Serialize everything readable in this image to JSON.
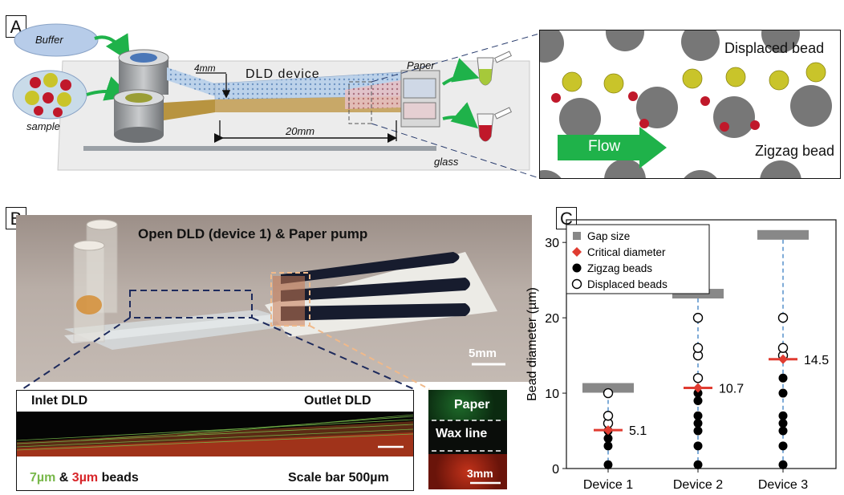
{
  "panels": {
    "a": {
      "letter": "A",
      "buffer": "Buffer",
      "sample": "sample",
      "device": "DLD device",
      "dim_width": "4mm",
      "dim_length": "20mm",
      "paper": "Paper",
      "glass": "glass",
      "zoom_displaced": "Displaced bead",
      "zoom_zigzag": "Zigzag bead",
      "zoom_flow": "Flow"
    },
    "b": {
      "letter": "B",
      "photo_title": "Open DLD (device 1) & Paper pump",
      "scale_photo": "5mm",
      "inlet": "Inlet DLD",
      "outlet": "Outlet DLD",
      "beads_7": "7µm",
      "beads_amp": " & ",
      "beads_3": "3µm",
      "beads_suffix": " beads",
      "scale_bar": "Scale bar 500µm",
      "paper": "Paper",
      "wax": "Wax line",
      "scale_inset": "3mm"
    },
    "c": {
      "letter": "C"
    }
  },
  "colors": {
    "gap": "#888888",
    "critical": "#e03c31",
    "zigzag": "#000000",
    "displaced": "#ffffff",
    "axis_dashed": "#3b7fc4",
    "bead_yellow": "#c9c42a",
    "bead_red": "#c0182a",
    "flow_green": "#1fb24a"
  },
  "chart_data": {
    "type": "scatter",
    "ylabel": "Bead diameter (µm)",
    "categories": [
      "Device 1",
      "Device 2",
      "Device 3"
    ],
    "ylim": [
      0,
      33
    ],
    "yticks": [
      0,
      10,
      20,
      30
    ],
    "legend": [
      "Gap size",
      "Critical diameter",
      "Zigzag beads",
      "Displaced beads"
    ],
    "legend_position": "top-left",
    "gap_size": [
      10.7,
      23.2,
      31.0
    ],
    "critical_diameter": [
      5.1,
      10.7,
      14.5
    ],
    "critical_labels": [
      "5.1",
      "10.7",
      "14.5"
    ],
    "zigzag": [
      [
        0.5,
        3,
        4,
        5
      ],
      [
        0.5,
        3,
        5,
        6,
        7,
        9,
        10
      ],
      [
        0.5,
        3,
        5,
        6,
        7,
        10,
        12
      ]
    ],
    "displaced": [
      [
        6,
        7,
        10
      ],
      [
        12,
        15,
        16,
        20
      ],
      [
        15,
        16,
        20
      ]
    ]
  }
}
